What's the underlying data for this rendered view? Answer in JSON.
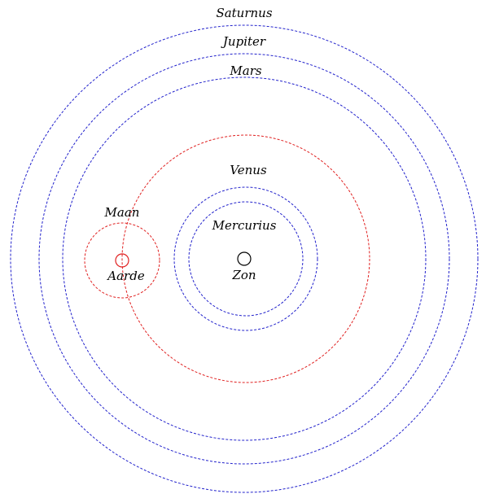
{
  "labels": {
    "saturnus": "Saturnus",
    "jupiter": "Jupiter",
    "mars": "Mars",
    "venus": "Venus",
    "mercurius": "Mercurius",
    "zon": "Zon",
    "maan": "Maan",
    "aarde": "Aarde"
  }
}
